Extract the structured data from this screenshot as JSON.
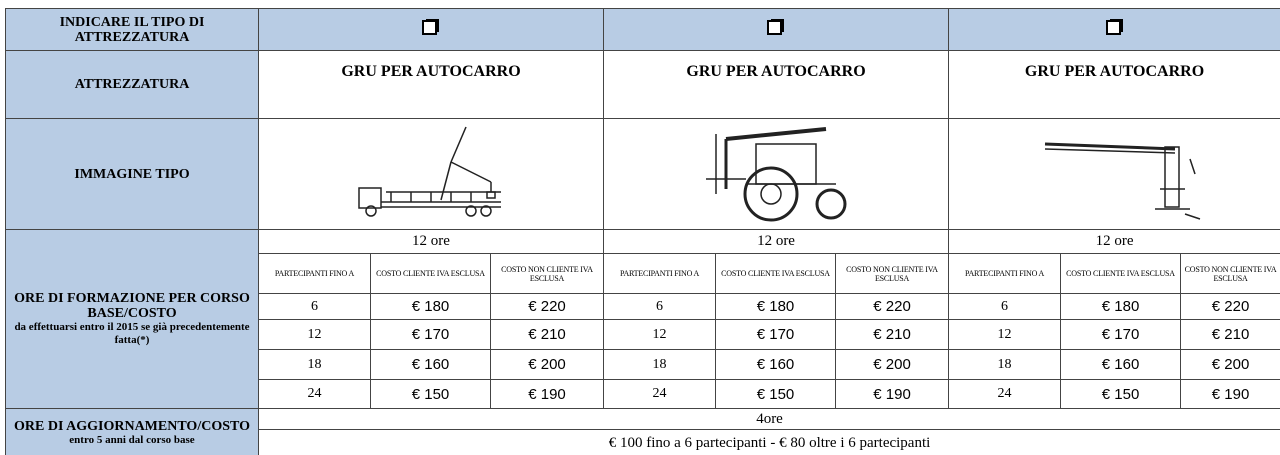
{
  "table": {
    "labels": {
      "type": "INDICARE IL TIPO DI ATTREZZATURA",
      "equipment": "ATTREZZATURA",
      "image": "IMMAGINE TIPO",
      "training": "ORE DI FORMAZIONE PER CORSO BASE/COSTO",
      "training_note": "da effettuarsi entro il 2015 se già precedentemente fatta(*)",
      "update": "ORE DI AGGIORNAMENTO/COSTO",
      "update_note": "entro 5 anni dal corso base"
    },
    "equipment": [
      {
        "name": "GRU PER AUTOCARRO",
        "hours": "12 ore",
        "columns": [
          "PARTECIPANTI FINO A",
          "COSTO CLIENTE IVA ESCLUSA",
          "COSTO NON CLIENTE IVA ESCLUSA"
        ],
        "rows": [
          [
            "6",
            "€ 180",
            "€ 220"
          ],
          [
            "12",
            "€ 170",
            "€ 210"
          ],
          [
            "18",
            "€ 160",
            "€ 200"
          ],
          [
            "24",
            "€ 150",
            "€ 190"
          ]
        ]
      },
      {
        "name": "GRU PER AUTOCARRO",
        "hours": "12 ore",
        "columns": [
          "PARTECIPANTI FINO A",
          "COSTO CLIENTE IVA ESCLUSA",
          "COSTO NON CLIENTE IVA ESCLUSA"
        ],
        "rows": [
          [
            "6",
            "€ 180",
            "€ 220"
          ],
          [
            "12",
            "€ 170",
            "€ 210"
          ],
          [
            "18",
            "€ 160",
            "€ 200"
          ],
          [
            "24",
            "€ 150",
            "€ 190"
          ]
        ]
      },
      {
        "name": "GRU PER AUTOCARRO",
        "hours": "12 ore",
        "columns": [
          "PARTECIPANTI FINO A",
          "COSTO CLIENTE IVA ESCLUSA",
          "COSTO NON CLIENTE IVA ESCLUSA"
        ],
        "rows": [
          [
            "6",
            "€ 180",
            "€ 220"
          ],
          [
            "12",
            "€ 170",
            "€ 210"
          ],
          [
            "18",
            "€ 160",
            "€ 200"
          ],
          [
            "24",
            "€ 150",
            "€ 190"
          ]
        ]
      }
    ],
    "update": {
      "hours": "4ore",
      "price": "€ 100 fino a 6 partecipanti - € 80 oltre i 6 partecipanti"
    }
  }
}
